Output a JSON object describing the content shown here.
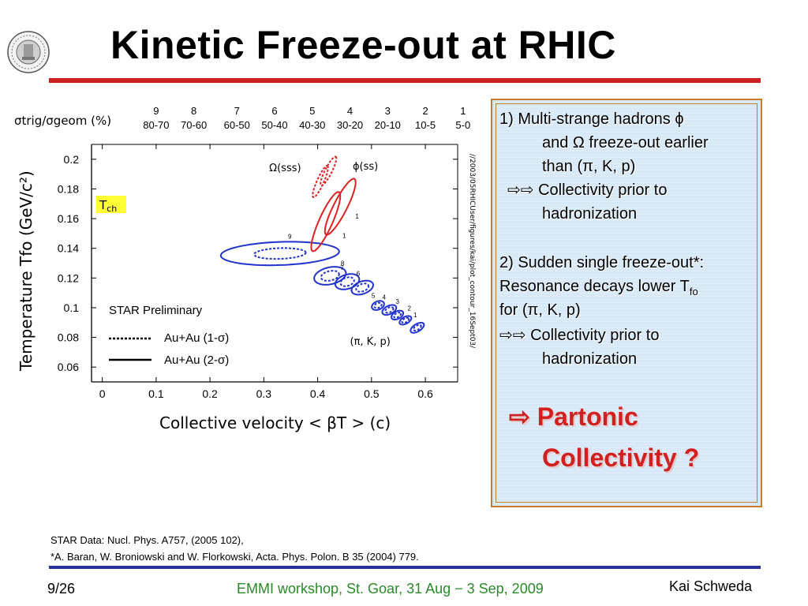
{
  "slide": {
    "title": "Kinetic Freeze-out at RHIC",
    "title_rule_color": "#cc1f1f",
    "logo": "university-seal-icon",
    "references": [
      "STAR Data: Nucl. Phys. A757, (2005 102),",
      "*A. Baran, W. Broniowski and W. Florkowski, Acta. Phys. Polon. B 35 (2004) 779."
    ],
    "footer": {
      "page": "9/26",
      "event": "EMMI workshop, St. Goar, 31 Aug − 3 Sep, 2009",
      "author": "Kai Schweda"
    }
  },
  "box": {
    "p1_line1": "1) Multi-strange hadrons ϕ",
    "p1_line2": "and Ω freeze-out earlier",
    "p1_line3": "than (π, K, p)",
    "p1_line4": "⇨⇨ Collectivity prior to",
    "p1_line5": "hadronization",
    "p2_line1": "2) Sudden single freeze-out*:",
    "p2_line2": "Resonance decays lower T",
    "p2_line2_sub": "fo",
    "p2_line3": "for  (π, K, p)",
    "p2_line4": "⇨⇨ Collectivity prior to",
    "p2_line5": "hadronization",
    "conclusion_line1": "⇨ Partonic",
    "conclusion_line2": "Collectivity ?"
  },
  "chart_data": {
    "type": "scatter",
    "xlabel": "Collective velocity < βT > (c)",
    "ylabel": "Temperature Tfo (GeV/c²)",
    "xlim": [
      -0.02,
      0.66
    ],
    "ylim": [
      0.05,
      0.21
    ],
    "x_ticks": [
      0,
      0.1,
      0.2,
      0.3,
      0.4,
      0.5,
      0.6
    ],
    "y_ticks": [
      0.06,
      0.08,
      0.1,
      0.12,
      0.14,
      0.16,
      0.18,
      0.2
    ],
    "top_axis_label": "σtrig/σgeom (%)",
    "top_axis": [
      {
        "x": 0.1,
        "bin": "9",
        "range": "80-70"
      },
      {
        "x": 0.17,
        "bin": "8",
        "range": "70-60"
      },
      {
        "x": 0.25,
        "bin": "7",
        "range": "60-50"
      },
      {
        "x": 0.32,
        "bin": "6",
        "range": "50-40"
      },
      {
        "x": 0.39,
        "bin": "5",
        "range": "40-30"
      },
      {
        "x": 0.46,
        "bin": "4",
        "range": "30-20"
      },
      {
        "x": 0.53,
        "bin": "3",
        "range": "20-10"
      },
      {
        "x": 0.6,
        "bin": "2",
        "range": "10-5"
      },
      {
        "x": 0.67,
        "bin": "1",
        "range": "5-0"
      }
    ],
    "legend": {
      "title": "STAR Preliminary",
      "entries": [
        {
          "name": "Au+Au (1-σ)",
          "style": "dashed"
        },
        {
          "name": "Au+Au (2-σ)",
          "style": "solid"
        }
      ]
    },
    "tch_label": "T",
    "tch_sub": "ch",
    "tch_color": "#ffff33",
    "side_text": "//2003/05RHICUser/figures/kai/plot_contour_16Sept03/",
    "annotations": [
      {
        "text": "Ω(sss)",
        "x": 0.31,
        "y": 0.192
      },
      {
        "text": "ϕ(ss)",
        "x": 0.465,
        "y": 0.193
      },
      {
        "text": "(π, K, p)",
        "x": 0.46,
        "y": 0.075
      }
    ],
    "series": [
      {
        "name": "(π, K, p)",
        "color": "#2233cc",
        "contours": [
          {
            "label": "9",
            "cx": 0.33,
            "cy": 0.1365,
            "rx": 0.11,
            "ry": 0.0078,
            "angle": -0.035,
            "ix": 0.33,
            "iy": 0.1365,
            "irx": 0.048,
            "iry": 0.0036,
            "lx": 0.345,
            "ly": 0.1465
          },
          {
            "label": "8",
            "cx": 0.423,
            "cy": 0.1215,
            "rx": 0.03,
            "ry": 0.0057,
            "angle": -0.22,
            "ix": 0.423,
            "iy": 0.1215,
            "irx": 0.017,
            "iry": 0.0032,
            "lx": 0.443,
            "ly": 0.1285
          },
          {
            "label": "7",
            "cx": 0.455,
            "cy": 0.1175,
            "rx": 0.023,
            "ry": 0.0048,
            "angle": -0.3,
            "ix": 0.455,
            "iy": 0.1175,
            "irx": 0.013,
            "iry": 0.0028,
            "lx": 0.442,
            "ly": 0.1255
          },
          {
            "label": "6",
            "cx": 0.483,
            "cy": 0.1135,
            "rx": 0.021,
            "ry": 0.0042,
            "angle": -0.35,
            "ix": 0.483,
            "iy": 0.1135,
            "irx": 0.012,
            "iry": 0.0025,
            "lx": 0.472,
            "ly": 0.1215
          },
          {
            "label": "5",
            "cx": 0.512,
            "cy": 0.1015,
            "rx": 0.012,
            "ry": 0.0028,
            "angle": -0.4,
            "ix": 0.512,
            "iy": 0.1015,
            "irx": 0.007,
            "iry": 0.0016,
            "lx": 0.5,
            "ly": 0.1065
          },
          {
            "label": "4",
            "cx": 0.533,
            "cy": 0.0985,
            "rx": 0.014,
            "ry": 0.0028,
            "angle": -0.45,
            "ix": 0.533,
            "iy": 0.0985,
            "irx": 0.008,
            "iry": 0.0016,
            "lx": 0.52,
            "ly": 0.1055
          },
          {
            "label": "3",
            "cx": 0.548,
            "cy": 0.095,
            "rx": 0.012,
            "ry": 0.0025,
            "angle": -0.5,
            "ix": 0.548,
            "iy": 0.095,
            "irx": 0.007,
            "iry": 0.0014,
            "lx": 0.545,
            "ly": 0.1025
          },
          {
            "label": "2",
            "cx": 0.563,
            "cy": 0.0915,
            "rx": 0.012,
            "ry": 0.0023,
            "angle": -0.5,
            "ix": 0.563,
            "iy": 0.0915,
            "irx": 0.007,
            "iry": 0.0013,
            "lx": 0.567,
            "ly": 0.098
          },
          {
            "label": "1",
            "cx": 0.585,
            "cy": 0.0865,
            "rx": 0.014,
            "ry": 0.0025,
            "angle": -0.55,
            "ix": 0.585,
            "iy": 0.0865,
            "irx": 0.008,
            "iry": 0.0014,
            "lx": 0.578,
            "ly": 0.0935
          }
        ]
      },
      {
        "name": "Ω(sss)",
        "color": "#dd2222",
        "contours": [
          {
            "label": "1",
            "cx": 0.415,
            "cy": 0.158,
            "rx": 0.06,
            "ry": 0.0045,
            "angle": -1.15,
            "ix": 0.405,
            "iy": 0.185,
            "irx": 0.032,
            "iry": 0.0023,
            "lx": 0.446,
            "ly": 0.147
          }
        ]
      },
      {
        "name": "ϕ(ss)",
        "color": "#dd2222",
        "contours": [
          {
            "label": "1",
            "cx": 0.442,
            "cy": 0.168,
            "rx": 0.058,
            "ry": 0.0045,
            "angle": -1.1,
            "ix": 0.42,
            "iy": 0.192,
            "irx": 0.03,
            "iry": 0.0023,
            "lx": 0.47,
            "ly": 0.16
          }
        ]
      }
    ]
  }
}
